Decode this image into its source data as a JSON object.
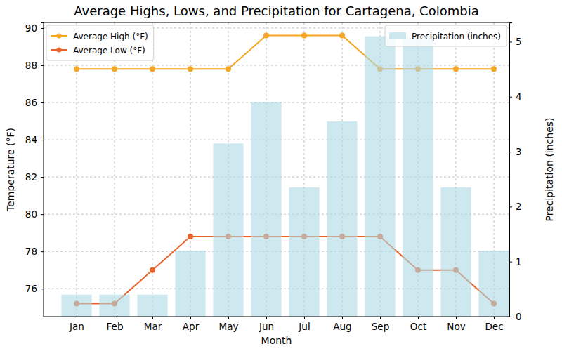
{
  "chart_data": {
    "type": "line",
    "title": "Average Highs, Lows, and Precipitation for Cartagena, Colombia",
    "x_label": "Month",
    "y_label": "Temperature (°F)",
    "y2_label": "Precipitation (inches)",
    "categories": [
      "Jan",
      "Feb",
      "Mar",
      "Apr",
      "May",
      "Jun",
      "Jul",
      "Aug",
      "Sep",
      "Oct",
      "Nov",
      "Dec"
    ],
    "ylim": [
      74.5,
      90.3
    ],
    "yticks": [
      76,
      78,
      80,
      82,
      84,
      86,
      88,
      90
    ],
    "y2lim": [
      0,
      5.35
    ],
    "y2ticks": [
      0,
      1,
      2,
      3,
      4,
      5
    ],
    "grid": true,
    "legend": "upper left",
    "series": [
      {
        "name": "Average High (°F)",
        "type": "line",
        "color": "#f5a623",
        "marker": "circle",
        "values": [
          87.8,
          87.8,
          87.8,
          87.8,
          87.8,
          89.6,
          89.6,
          89.6,
          87.8,
          87.8,
          87.8,
          87.8
        ]
      },
      {
        "name": "Average Low (°F)",
        "type": "line",
        "color": "#e8632b",
        "marker": "circle",
        "values": [
          75.2,
          75.2,
          77,
          78.8,
          78.8,
          78.8,
          78.8,
          78.8,
          78.8,
          77,
          77,
          75.2
        ]
      },
      {
        "name": "Precipitation (inches)",
        "type": "bar",
        "axis": "y2",
        "color": "#add8e6",
        "legend": "upper right",
        "values": [
          0.4,
          0.4,
          0.4,
          1.2,
          3.15,
          3.9,
          2.35,
          3.55,
          5.1,
          5.1,
          2.35,
          1.2
        ]
      }
    ]
  }
}
